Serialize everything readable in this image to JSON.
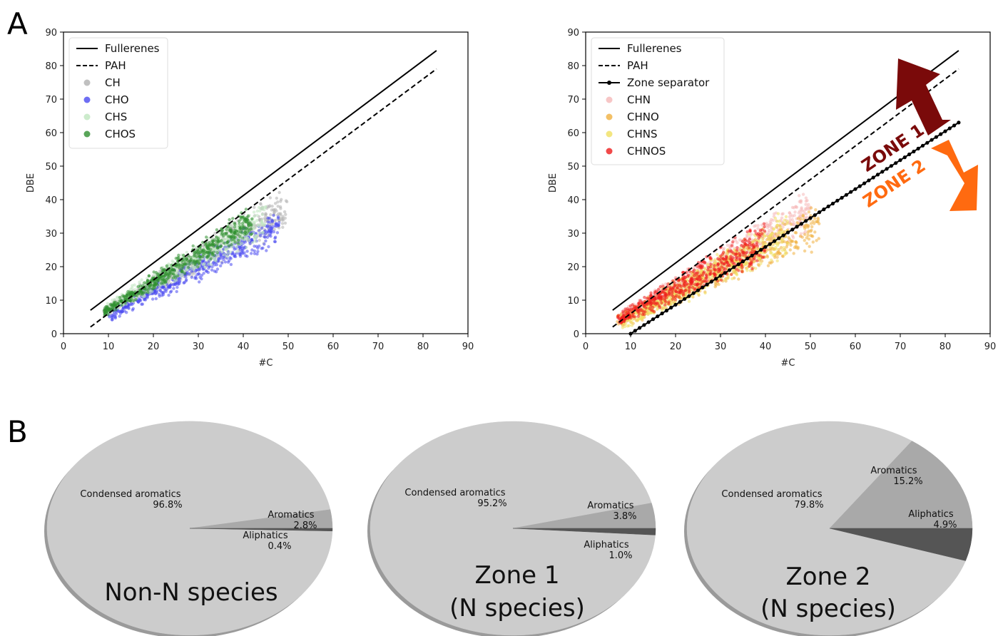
{
  "panel_labels": {
    "a": "A",
    "b": "B"
  },
  "chart_data": [
    {
      "type": "scatter",
      "xlabel": "#C",
      "ylabel": "DBE",
      "xlim": [
        0,
        90
      ],
      "ylim": [
        0,
        90
      ],
      "xticks": [
        0,
        10,
        20,
        30,
        40,
        50,
        60,
        70,
        80,
        90
      ],
      "yticks": [
        0,
        10,
        20,
        30,
        40,
        50,
        60,
        70,
        80,
        90
      ],
      "grid": false,
      "legend_placement": "top-left",
      "lines": [
        {
          "name": "Fullerenes",
          "style": "solid",
          "color": "#000000",
          "x": [
            6,
            83
          ],
          "y": [
            7,
            84.5
          ]
        },
        {
          "name": "PAH",
          "style": "dashed",
          "color": "#000000",
          "x": [
            6,
            83
          ],
          "y": [
            2,
            79
          ]
        }
      ],
      "series": [
        {
          "name": "CH",
          "color": "#b0b0b0",
          "x_range": [
            9,
            50
          ],
          "ymin_at_xmin": 5,
          "ymax_at_xmin": 8,
          "ymin_at_xmax": 30,
          "ymax_at_xmax": 45
        },
        {
          "name": "CHO",
          "color": "#4a4af0",
          "x_range": [
            10,
            48
          ],
          "ymin_at_xmin": 3,
          "ymax_at_xmin": 8,
          "ymin_at_xmax": 26,
          "ymax_at_xmax": 38
        },
        {
          "name": "CHS",
          "color": "#bfe6bf",
          "x_range": [
            9,
            45
          ],
          "ymin_at_xmin": 5,
          "ymax_at_xmin": 9,
          "ymin_at_xmax": 28,
          "ymax_at_xmax": 40
        },
        {
          "name": "CHOS",
          "color": "#2f8f2f",
          "x_range": [
            9,
            42
          ],
          "ymin_at_xmin": 5,
          "ymax_at_xmin": 8,
          "ymin_at_xmax": 28,
          "ymax_at_xmax": 39
        }
      ]
    },
    {
      "type": "scatter",
      "xlabel": "#C",
      "ylabel": "DBE",
      "xlim": [
        0,
        90
      ],
      "ylim": [
        0,
        90
      ],
      "xticks": [
        0,
        10,
        20,
        30,
        40,
        50,
        60,
        70,
        80,
        90
      ],
      "yticks": [
        0,
        10,
        20,
        30,
        40,
        50,
        60,
        70,
        80,
        90
      ],
      "grid": false,
      "legend_placement": "top-left",
      "lines": [
        {
          "name": "Fullerenes",
          "style": "solid",
          "color": "#000000",
          "x": [
            6,
            83
          ],
          "y": [
            7,
            84.5
          ]
        },
        {
          "name": "PAH",
          "style": "dashed",
          "color": "#000000",
          "x": [
            6,
            83
          ],
          "y": [
            2,
            79
          ]
        },
        {
          "name": "Zone separator",
          "style": "solid-markers",
          "color": "#000000",
          "x": [
            10,
            83
          ],
          "y": [
            0,
            63
          ]
        }
      ],
      "series": [
        {
          "name": "CHN",
          "color": "#f5b8b8",
          "x_range": [
            7,
            50
          ],
          "ymin_at_xmin": 2,
          "ymax_at_xmin": 6,
          "ymin_at_xmax": 30,
          "ymax_at_xmax": 44
        },
        {
          "name": "CHNO",
          "color": "#f0b040",
          "x_range": [
            7,
            52
          ],
          "ymin_at_xmin": 1,
          "ymax_at_xmin": 6,
          "ymin_at_xmax": 25,
          "ymax_at_xmax": 40
        },
        {
          "name": "CHNS",
          "color": "#f0e060",
          "x_range": [
            8,
            45
          ],
          "ymin_at_xmin": 1,
          "ymax_at_xmin": 6,
          "ymin_at_xmax": 22,
          "ymax_at_xmax": 38
        },
        {
          "name": "CHNOS",
          "color": "#ee1c1c",
          "x_range": [
            7,
            40
          ],
          "ymin_at_xmin": 2,
          "ymax_at_xmin": 6,
          "ymin_at_xmax": 20,
          "ymax_at_xmax": 35
        }
      ],
      "annotations": [
        {
          "text": "ZONE 1",
          "color": "#7a0a0a"
        },
        {
          "text": "ZONE 2",
          "color": "#ff6a10"
        }
      ]
    },
    {
      "type": "pie",
      "title": "Non-N species",
      "slices": [
        {
          "label": "Condensed aromatics",
          "value": 96.8,
          "display": "96.8%",
          "color": "#cccccc"
        },
        {
          "label": "Aromatics",
          "value": 2.8,
          "display": "2.8%",
          "color": "#a9a9a9"
        },
        {
          "label": "Aliphatics",
          "value": 0.4,
          "display": "0.4%",
          "color": "#555555"
        }
      ]
    },
    {
      "type": "pie",
      "title": "Zone 1",
      "subtitle": "(N species)",
      "slices": [
        {
          "label": "Condensed aromatics",
          "value": 95.2,
          "display": "95.2%",
          "color": "#cccccc"
        },
        {
          "label": "Aromatics",
          "value": 3.8,
          "display": "3.8%",
          "color": "#a9a9a9"
        },
        {
          "label": "Aliphatics",
          "value": 1.0,
          "display": "1.0%",
          "color": "#555555"
        }
      ]
    },
    {
      "type": "pie",
      "title": "Zone 2",
      "subtitle": "(N species)",
      "slices": [
        {
          "label": "Condensed aromatics",
          "value": 79.8,
          "display": "79.8%",
          "color": "#cccccc"
        },
        {
          "label": "Aromatics",
          "value": 15.2,
          "display": "15.2%",
          "color": "#a9a9a9"
        },
        {
          "label": "Aliphatics",
          "value": 4.9,
          "display": "4.9%",
          "color": "#555555"
        }
      ]
    }
  ]
}
